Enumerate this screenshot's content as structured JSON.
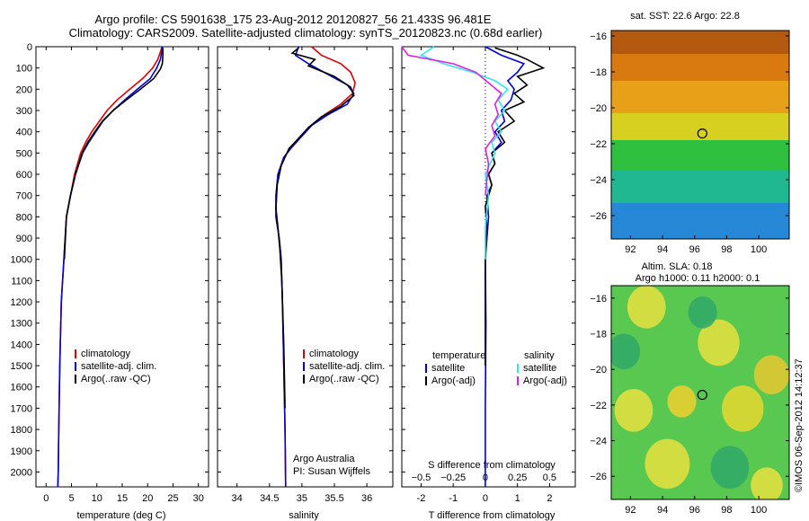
{
  "header": {
    "line1": "Argo profile: CS 5901638_175 23-Aug-2012 20120827_56 21.433S 96.481E",
    "line2": "Climatology: CARS2009. Satellite-adjusted climatology: synTS_20120823.nc (0.68d earlier)"
  },
  "colors": {
    "climatology": "#e00000",
    "satellite": "#0000e0",
    "argo": "#000000",
    "sal_satellite": "#30e8e8",
    "sal_argo": "#e020e0"
  },
  "depth_ticks": [
    0,
    100,
    200,
    300,
    400,
    500,
    600,
    700,
    800,
    900,
    1000,
    1100,
    1200,
    1300,
    1400,
    1500,
    1600,
    1700,
    1800,
    1900,
    2000
  ],
  "chart_data": [
    {
      "type": "line",
      "id": "temperature",
      "xlabel": "temperature (deg C)",
      "xlim": [
        -2,
        32
      ],
      "ylim": [
        0,
        2070
      ],
      "y_reversed": true,
      "xticks": [
        0,
        5,
        10,
        15,
        20,
        25,
        30
      ],
      "legend": {
        "items": [
          "climatology",
          "satellite-adj. clim.",
          "Argo(..raw -QC)"
        ],
        "placement": "lower-center"
      },
      "series": [
        {
          "name": "climatology",
          "color": "#e00000",
          "x": [
            22.8,
            22.6,
            22.0,
            21.0,
            19.0,
            16.5,
            14.0,
            12.0,
            10.5,
            9.0,
            7.8,
            6.8,
            5.6,
            4.8,
            4.0,
            3.5,
            3.0,
            2.7,
            2.5,
            2.4,
            2.3
          ],
          "y": [
            0,
            20,
            60,
            100,
            150,
            200,
            250,
            300,
            350,
            400,
            450,
            500,
            600,
            700,
            800,
            1000,
            1200,
            1500,
            1800,
            2000,
            2070
          ]
        },
        {
          "name": "satellite-adj. clim.",
          "color": "#0000e0",
          "x": [
            22.9,
            22.8,
            22.5,
            21.8,
            20.5,
            18.0,
            15.5,
            13.2,
            11.2,
            9.8,
            8.4,
            7.2,
            5.8,
            4.8,
            4.0,
            3.5,
            3.0,
            2.7,
            2.5,
            2.4,
            2.3
          ],
          "y": [
            0,
            20,
            60,
            100,
            150,
            200,
            250,
            300,
            350,
            400,
            450,
            500,
            600,
            700,
            800,
            1000,
            1200,
            1500,
            1800,
            2000,
            2070
          ]
        },
        {
          "name": "Argo(..raw -QC)",
          "color": "#000000",
          "x": [
            23.0,
            23.0,
            22.9,
            22.5,
            21.2,
            18.6,
            15.8,
            13.2,
            11.1,
            9.6,
            8.2,
            7.1,
            5.8,
            4.8,
            4.0,
            3.6
          ],
          "y": [
            5,
            40,
            80,
            105,
            150,
            200,
            250,
            300,
            350,
            400,
            450,
            500,
            600,
            700,
            800,
            1000
          ]
        }
      ]
    },
    {
      "type": "line",
      "id": "salinity",
      "xlabel": "salinity",
      "xlim": [
        33.7,
        36.4
      ],
      "ylim": [
        0,
        2070
      ],
      "y_reversed": true,
      "xticks": [
        34,
        34.5,
        35,
        35.5,
        36
      ],
      "legend": {
        "items": [
          "climatology",
          "satellite-adj. clim.",
          "Argo(..raw -QC)"
        ],
        "placement": "lower-center"
      },
      "annotation": [
        "Argo Australia",
        "PI: Susan Wijffels"
      ],
      "series": [
        {
          "name": "climatology",
          "color": "#e00000",
          "x": [
            35.15,
            35.3,
            35.6,
            35.75,
            35.82,
            35.78,
            35.6,
            35.35,
            35.15,
            35.0,
            34.85,
            34.72,
            34.63,
            34.6,
            34.6,
            34.65,
            34.68,
            34.7,
            34.72,
            34.74,
            34.75
          ],
          "y": [
            0,
            40,
            80,
            120,
            170,
            220,
            270,
            320,
            370,
            420,
            470,
            520,
            600,
            700,
            800,
            900,
            1000,
            1200,
            1500,
            1800,
            2070
          ]
        },
        {
          "name": "satellite-adj. clim.",
          "color": "#0000e0",
          "x": [
            34.95,
            34.9,
            35.1,
            35.4,
            35.7,
            35.8,
            35.7,
            35.4,
            35.15,
            35.0,
            34.85,
            34.72,
            34.63,
            34.6,
            34.6,
            34.65,
            34.68,
            34.7,
            34.72,
            34.74,
            34.75
          ],
          "y": [
            0,
            40,
            80,
            130,
            180,
            220,
            270,
            320,
            370,
            420,
            470,
            520,
            600,
            700,
            800,
            900,
            1000,
            1200,
            1500,
            1800,
            2070
          ]
        },
        {
          "name": "Argo(..raw -QC)",
          "color": "#000000",
          "x": [
            34.95,
            34.85,
            35.2,
            35.1,
            35.5,
            35.75,
            35.8,
            35.6,
            35.3,
            35.1,
            34.95,
            34.8,
            34.68,
            34.62,
            34.6,
            34.63,
            34.66,
            34.69,
            34.72,
            34.74
          ],
          "y": [
            5,
            30,
            60,
            90,
            140,
            190,
            230,
            280,
            330,
            380,
            430,
            480,
            560,
            650,
            760,
            850,
            950,
            1100,
            1400,
            1700
          ]
        }
      ]
    },
    {
      "type": "line",
      "id": "difference",
      "xlabel": "T difference from climatology",
      "xlabel_top": "S difference from climatology",
      "xlim": [
        -2.6,
        2.8
      ],
      "ylim": [
        0,
        2070
      ],
      "y_reversed": true,
      "xticks": [
        -2,
        -1,
        0,
        1,
        2
      ],
      "xticks_top_values": [
        -0.5,
        -0.25,
        0,
        0.25,
        0.5
      ],
      "xticks_top_labels": [
        "−0.5",
        "−0.25",
        "0",
        "0.25",
        "0.5"
      ],
      "xticks_top_positions": [
        -2,
        -1,
        0,
        1,
        2
      ],
      "zero_line": "dotted",
      "legend": {
        "temperature_title": "temperature",
        "salinity_title": "salinity",
        "items": [
          "satellite",
          "Argo(-adj)",
          "satellite",
          "Argo(-adj)"
        ],
        "placement": "lower-center"
      },
      "series": [
        {
          "name": "temperature satellite",
          "color": "#0000e0",
          "x": [
            0.0,
            0.5,
            1.2,
            1.0,
            0.7,
            0.9,
            0.8,
            0.5,
            0.6,
            0.3,
            0.5,
            0.2,
            0.3,
            0.1,
            0.2,
            0.05,
            0.1,
            0.0,
            0.02,
            0.0,
            0.0
          ],
          "y": [
            0,
            40,
            80,
            120,
            160,
            200,
            250,
            300,
            350,
            400,
            450,
            500,
            550,
            600,
            650,
            700,
            800,
            1000,
            1300,
            1700,
            2070
          ]
        },
        {
          "name": "temperature Argo(-adj)",
          "color": "#000000",
          "x": [
            0.3,
            1.0,
            1.3,
            1.8,
            1.0,
            1.3,
            0.9,
            1.2,
            0.6,
            0.9,
            0.4,
            0.6,
            0.2,
            0.3,
            0.1,
            0.2,
            0.0,
            0.05,
            0.0,
            0.0,
            0.0
          ],
          "y": [
            5,
            40,
            60,
            100,
            140,
            180,
            220,
            260,
            300,
            350,
            400,
            450,
            500,
            550,
            600,
            650,
            750,
            850,
            1000,
            1200,
            1500
          ]
        },
        {
          "name": "salinity satellite",
          "color": "#30e8e8",
          "x": [
            -1.6,
            -2.0,
            -1.3,
            -0.4,
            0.3,
            0.7,
            0.4,
            0.6,
            0.3,
            0.5,
            0.2,
            0.3,
            0.0,
            0.1,
            0.0,
            0.0
          ],
          "y": [
            0,
            40,
            80,
            120,
            160,
            200,
            250,
            300,
            350,
            400,
            450,
            500,
            600,
            700,
            850,
            1000
          ]
        },
        {
          "name": "salinity Argo(-adj)",
          "color": "#e020e0",
          "x": [
            -2.6,
            -2.4,
            -1.0,
            -0.3,
            0.1,
            0.5,
            0.3,
            0.4,
            0.2,
            0.3,
            0.0,
            0.1,
            0.0
          ],
          "y": [
            0,
            40,
            80,
            120,
            170,
            220,
            270,
            320,
            370,
            420,
            480,
            550,
            700
          ]
        }
      ]
    },
    {
      "type": "heatmap",
      "id": "sst-map",
      "title": "sat. SST: 22.6 Argo: 22.8",
      "xlim": [
        90.8,
        101.9
      ],
      "ylim": [
        -27.3,
        -15.7
      ],
      "xticks": [
        92,
        94,
        96,
        98,
        100
      ],
      "yticks": [
        -16,
        -18,
        -20,
        -22,
        -24,
        -26
      ],
      "marker": {
        "lon": 96.48,
        "lat": -21.43
      },
      "regions": [
        {
          "lat_from": -15.7,
          "lat_to": -17,
          "color": "#b45a10"
        },
        {
          "lat_from": -17,
          "lat_to": -18.5,
          "color": "#d87a10"
        },
        {
          "lat_from": -18.5,
          "lat_to": -20.3,
          "color": "#e8a018"
        },
        {
          "lat_from": -20.3,
          "lat_to": -21.8,
          "color": "#d8d020"
        },
        {
          "lat_from": -21.8,
          "lat_to": -23.5,
          "color": "#30c040"
        },
        {
          "lat_from": -23.5,
          "lat_to": -25.3,
          "color": "#20b890"
        },
        {
          "lat_from": -25.3,
          "lat_to": -27.3,
          "color": "#2888d8"
        }
      ]
    },
    {
      "type": "heatmap",
      "id": "sla-map",
      "title": "Altim. SLA: 0.18",
      "subtitle": "Argo h1000: 0.11 h2000: 0.1",
      "xlim": [
        90.8,
        101.9
      ],
      "ylim": [
        -27.3,
        -15.3
      ],
      "xticks": [
        92,
        94,
        96,
        98,
        100
      ],
      "yticks": [
        -16,
        -18,
        -20,
        -22,
        -24,
        -26
      ],
      "marker": {
        "lon": 96.48,
        "lat": -21.43
      },
      "base_color": "#58c850",
      "blobs": [
        {
          "lon": 93.0,
          "lat": -16.5,
          "r": 1.2,
          "color": "#e8e040"
        },
        {
          "lon": 97.5,
          "lat": -18.5,
          "r": 1.3,
          "color": "#e8e040"
        },
        {
          "lon": 100.8,
          "lat": -20.3,
          "r": 1.1,
          "color": "#e8c830"
        },
        {
          "lon": 92.2,
          "lat": -22.3,
          "r": 1.2,
          "color": "#e8e040"
        },
        {
          "lon": 95.2,
          "lat": -21.8,
          "r": 0.9,
          "color": "#f0d030"
        },
        {
          "lon": 99.0,
          "lat": -22.2,
          "r": 1.3,
          "color": "#e8d830"
        },
        {
          "lon": 94.3,
          "lat": -25.3,
          "r": 1.4,
          "color": "#e8e040"
        },
        {
          "lon": 98.2,
          "lat": -25.5,
          "r": 1.2,
          "color": "#30a868"
        },
        {
          "lon": 91.6,
          "lat": -19.0,
          "r": 1.0,
          "color": "#30a868"
        },
        {
          "lon": 100.5,
          "lat": -26.5,
          "r": 1.0,
          "color": "#e8e040"
        },
        {
          "lon": 96.5,
          "lat": -16.8,
          "r": 0.9,
          "color": "#30a868"
        }
      ]
    }
  ],
  "footer_stamp": "©IMOS 06-Sep-2012 14:12:37"
}
